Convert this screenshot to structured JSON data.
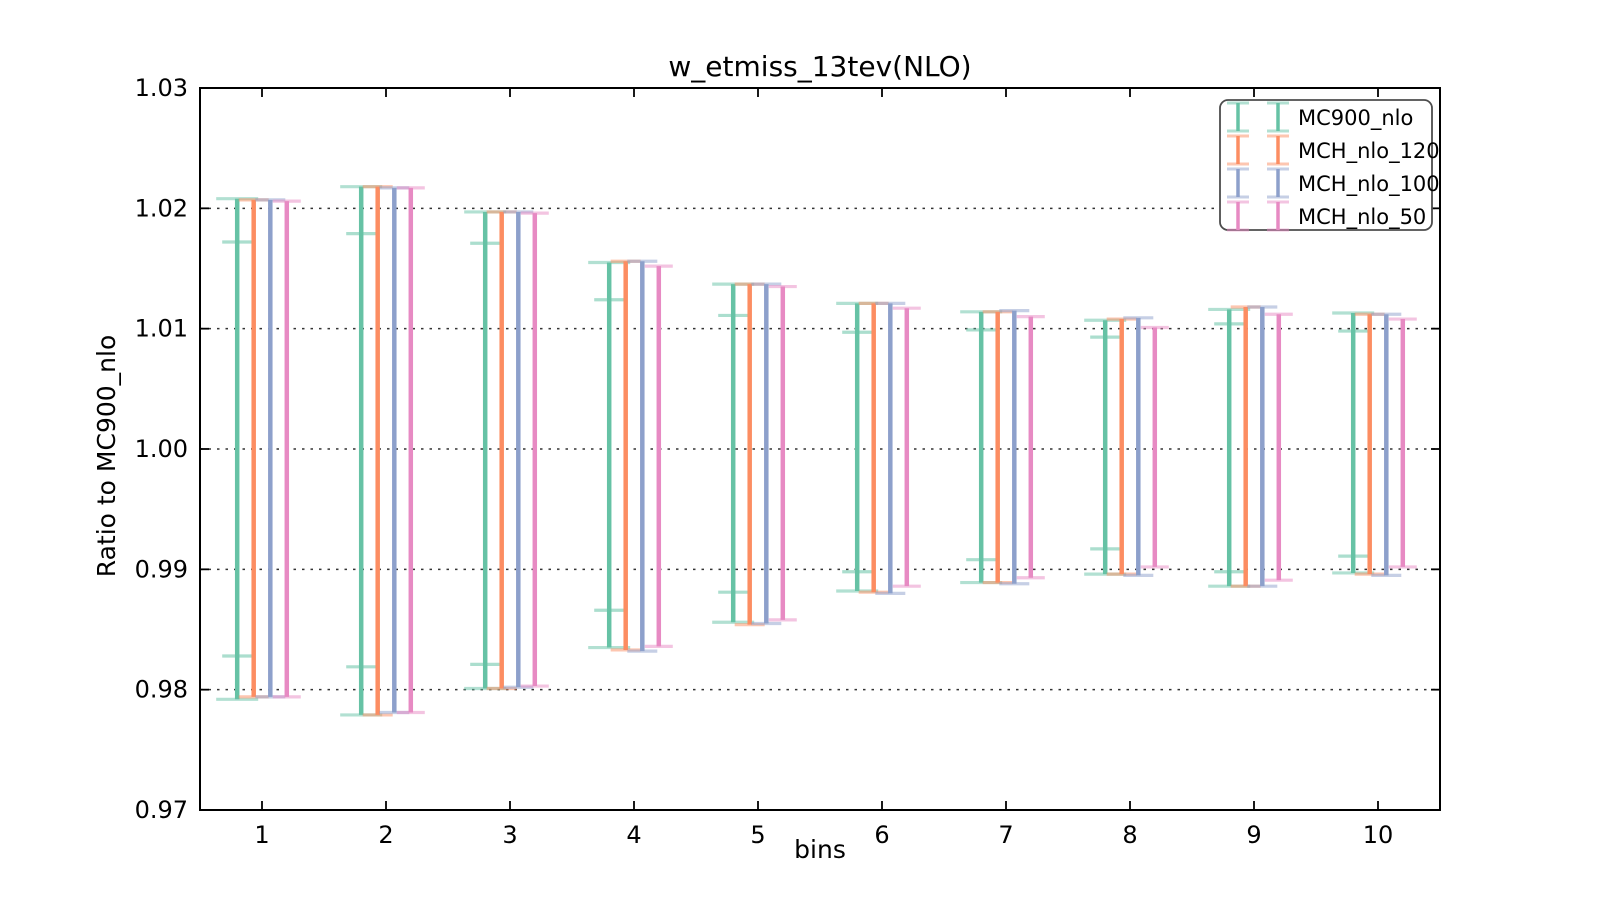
{
  "figure": {
    "background": "#ffffff",
    "frame_color": "#000000"
  },
  "chart_data": {
    "type": "errorbar",
    "title": "w_etmiss_13tev(NLO)",
    "xlabel": "bins",
    "ylabel": "Ratio to MC900_nlo",
    "xlim": [
      0.5,
      10.5
    ],
    "ylim": [
      0.97,
      1.03
    ],
    "bins": [
      1,
      2,
      3,
      4,
      5,
      6,
      7,
      8,
      9,
      10
    ],
    "xticks": [
      1,
      2,
      3,
      4,
      5,
      6,
      7,
      8,
      9,
      10
    ],
    "yticks": [
      0.97,
      0.98,
      0.99,
      1.0,
      1.01,
      1.02,
      1.03
    ],
    "ytick_labels": [
      "0.97",
      "0.98",
      "0.99",
      "1.00",
      "1.01",
      "1.02",
      "1.03"
    ],
    "grid_y": [
      0.98,
      0.99,
      1.0,
      1.01,
      1.02
    ],
    "grid_style": "dotted",
    "legend": {
      "position": "upper-right",
      "border_color": "#4d4d4d"
    },
    "series": [
      {
        "name": "MC900_nlo",
        "color": "#66c2a5",
        "offset": -0.2,
        "capwidth": 42,
        "points": [
          {
            "lo": 0.9792,
            "hi": 1.0208,
            "inner_lo": 0.9828,
            "inner_hi": 1.0172
          },
          {
            "lo": 0.9779,
            "hi": 1.0218,
            "inner_lo": 0.9819,
            "inner_hi": 1.0179
          },
          {
            "lo": 0.9801,
            "hi": 1.0197,
            "inner_lo": 0.9821,
            "inner_hi": 1.0171
          },
          {
            "lo": 0.9835,
            "hi": 1.0155,
            "inner_lo": 0.9866,
            "inner_hi": 1.0124
          },
          {
            "lo": 0.9856,
            "hi": 1.0137,
            "inner_lo": 0.9881,
            "inner_hi": 1.0111
          },
          {
            "lo": 0.9882,
            "hi": 1.0121,
            "inner_lo": 0.9898,
            "inner_hi": 1.0097
          },
          {
            "lo": 0.9889,
            "hi": 1.0114,
            "inner_lo": 0.9908,
            "inner_hi": 1.0099
          },
          {
            "lo": 0.9896,
            "hi": 1.0107,
            "inner_lo": 0.9917,
            "inner_hi": 1.0093
          },
          {
            "lo": 0.9886,
            "hi": 1.0116,
            "inner_lo": 0.9898,
            "inner_hi": 1.0104
          },
          {
            "lo": 0.9897,
            "hi": 1.0113,
            "inner_lo": 0.9911,
            "inner_hi": 1.0098
          }
        ]
      },
      {
        "name": "MCH_nlo_120",
        "color": "#fc8d62",
        "offset": -0.067,
        "capwidth": 30,
        "points": [
          {
            "lo": 0.9794,
            "hi": 1.0207
          },
          {
            "lo": 0.9779,
            "hi": 1.0218
          },
          {
            "lo": 0.9801,
            "hi": 1.0197
          },
          {
            "lo": 0.9833,
            "hi": 1.0156
          },
          {
            "lo": 0.9854,
            "hi": 1.0137
          },
          {
            "lo": 0.9881,
            "hi": 1.0121
          },
          {
            "lo": 0.9889,
            "hi": 1.0114
          },
          {
            "lo": 0.9896,
            "hi": 1.0108
          },
          {
            "lo": 0.9886,
            "hi": 1.0118
          },
          {
            "lo": 0.9896,
            "hi": 1.0112
          }
        ]
      },
      {
        "name": "MCH_nlo_100",
        "color": "#8da0cb",
        "offset": 0.067,
        "capwidth": 30,
        "points": [
          {
            "lo": 0.9794,
            "hi": 1.0207
          },
          {
            "lo": 0.9781,
            "hi": 1.0217
          },
          {
            "lo": 0.9802,
            "hi": 1.0197
          },
          {
            "lo": 0.9832,
            "hi": 1.0156
          },
          {
            "lo": 0.9855,
            "hi": 1.0137
          },
          {
            "lo": 0.988,
            "hi": 1.0121
          },
          {
            "lo": 0.9888,
            "hi": 1.0115
          },
          {
            "lo": 0.9895,
            "hi": 1.0109
          },
          {
            "lo": 0.9886,
            "hi": 1.0118
          },
          {
            "lo": 0.9895,
            "hi": 1.0112
          }
        ]
      },
      {
        "name": "MCH_nlo_50",
        "color": "#e78ac3",
        "offset": 0.2,
        "capwidth": 28,
        "points": [
          {
            "lo": 0.9794,
            "hi": 1.0206
          },
          {
            "lo": 0.9781,
            "hi": 1.0217
          },
          {
            "lo": 0.9803,
            "hi": 1.0196
          },
          {
            "lo": 0.9836,
            "hi": 1.0152
          },
          {
            "lo": 0.9858,
            "hi": 1.0135
          },
          {
            "lo": 0.9886,
            "hi": 1.0117
          },
          {
            "lo": 0.9893,
            "hi": 1.011
          },
          {
            "lo": 0.9902,
            "hi": 1.0101
          },
          {
            "lo": 0.9891,
            "hi": 1.0112
          },
          {
            "lo": 0.9902,
            "hi": 1.0108
          }
        ]
      }
    ]
  }
}
